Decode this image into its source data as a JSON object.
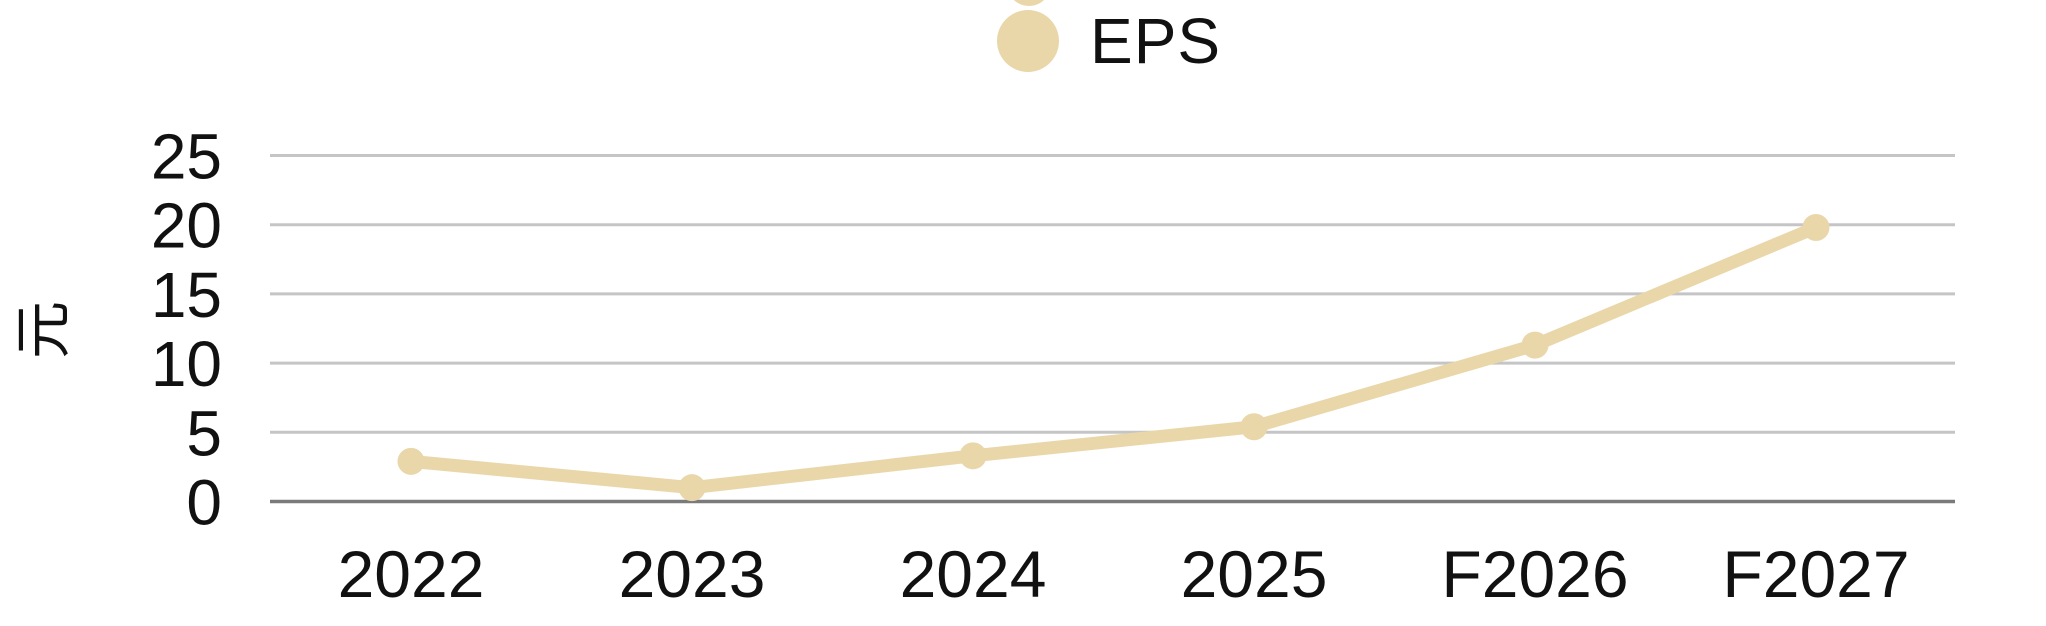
{
  "chart_data": {
    "type": "line",
    "title": "",
    "categories": [
      "2022",
      "2023",
      "2024",
      "2025",
      "F2026",
      "F2027"
    ],
    "series": [
      {
        "name": "EPS",
        "values": [
          2.9,
          1.0,
          3.3,
          5.4,
          11.3,
          19.8
        ]
      }
    ],
    "xlabel": "",
    "ylabel": "元",
    "yticks": [
      0,
      5,
      10,
      15,
      20,
      25
    ],
    "ylim": [
      0,
      25
    ],
    "grid": true,
    "legend_position": "top-center",
    "marker": "circle",
    "colors": {
      "series": "#EAD7A9",
      "grid": "#C5C5C5",
      "axis": "#7A7A7A",
      "text": "#111111",
      "background": "#FFFFFF"
    }
  }
}
